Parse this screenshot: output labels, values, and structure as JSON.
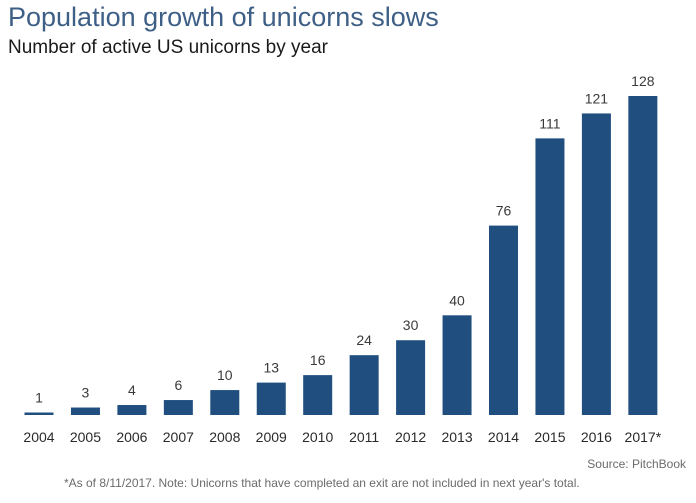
{
  "chart_data": {
    "type": "bar",
    "title": "Population growth of unicorns slows",
    "subtitle": "Number of active US unicorns by year",
    "categories": [
      "2004",
      "2005",
      "2006",
      "2007",
      "2008",
      "2009",
      "2010",
      "2011",
      "2012",
      "2013",
      "2014",
      "2015",
      "2016",
      "2017*"
    ],
    "values": [
      1,
      3,
      4,
      6,
      10,
      13,
      16,
      24,
      30,
      40,
      76,
      111,
      121,
      128
    ],
    "data_labels": [
      "1",
      "3",
      "4",
      "6",
      "10",
      "13",
      "16",
      "24",
      "30",
      "40",
      "76",
      "111",
      "121",
      "128"
    ],
    "ylim": [
      0,
      128
    ],
    "grid": false,
    "legend": "none",
    "bar_color": "#1f4e7f",
    "source": "Source: PitchBook",
    "footnote": "*As of 8/11/2017. Note: Unicorns that have completed an exit are not included in next year's total."
  }
}
